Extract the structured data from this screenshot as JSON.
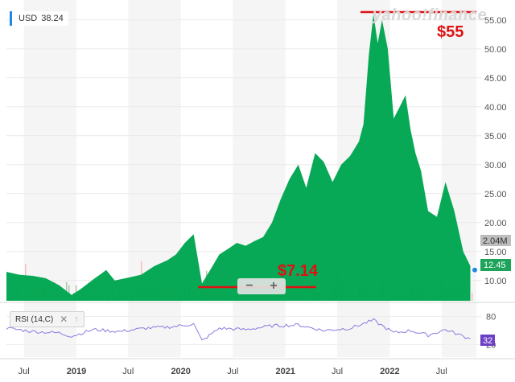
{
  "watermark": "yahoo!finance",
  "currency_badge": {
    "label": "USD",
    "value": "38.24"
  },
  "rsi_indicator": {
    "label": "RSI (14,C)",
    "close_icon": "close-icon",
    "up_icon": "arrow-up-icon",
    "value_label": "32"
  },
  "navigator": {
    "minus_label": "−",
    "plus_label": "+"
  },
  "annotations": {
    "high_label": "$55",
    "low_label": "$7.14"
  },
  "colors": {
    "area": "#00a651",
    "annotation": "#dd1111",
    "rsi_line": "#8a7be0",
    "volume_up": "#9bb89b",
    "volume_down": "#f2b3b3",
    "last_price_badge": "#1ea35a",
    "volume_badge": "#bdbdbd"
  },
  "chart_data": {
    "type": "area",
    "y_axis_ticks": [
      "55.00",
      "50.00",
      "45.00",
      "40.00",
      "35.00",
      "30.00",
      "25.00",
      "20.00",
      "15.00",
      "10.00"
    ],
    "x_axis_ticks": [
      "Jul",
      "2019",
      "Jul",
      "2020",
      "Jul",
      "2021",
      "Jul",
      "2022",
      "Jul"
    ],
    "ylim": [
      6.5,
      56.5
    ],
    "last_price": "12.45",
    "volume_label": "2.04M",
    "price_series": [
      [
        "2018-05-01",
        11.5
      ],
      [
        "2018-06-15",
        11.0
      ],
      [
        "2018-08-01",
        10.8
      ],
      [
        "2018-09-15",
        10.4
      ],
      [
        "2018-11-01",
        9.2
      ],
      [
        "2018-12-15",
        7.5
      ],
      [
        "2019-01-15",
        8.5
      ],
      [
        "2019-03-01",
        10.2
      ],
      [
        "2019-04-15",
        11.8
      ],
      [
        "2019-05-15",
        10.0
      ],
      [
        "2019-07-01",
        10.5
      ],
      [
        "2019-08-15",
        11.0
      ],
      [
        "2019-10-01",
        12.5
      ],
      [
        "2019-11-15",
        13.5
      ],
      [
        "2019-12-15",
        14.5
      ],
      [
        "2020-01-15",
        16.5
      ],
      [
        "2020-02-15",
        18.0
      ],
      [
        "2020-03-15",
        9.5
      ],
      [
        "2020-04-15",
        12.0
      ],
      [
        "2020-05-15",
        14.5
      ],
      [
        "2020-06-15",
        15.5
      ],
      [
        "2020-07-15",
        16.5
      ],
      [
        "2020-08-15",
        16.0
      ],
      [
        "2020-09-15",
        16.8
      ],
      [
        "2020-10-15",
        17.5
      ],
      [
        "2020-11-15",
        20.0
      ],
      [
        "2020-12-15",
        24.0
      ],
      [
        "2021-01-15",
        27.5
      ],
      [
        "2021-02-15",
        30.0
      ],
      [
        "2021-03-15",
        26.0
      ],
      [
        "2021-04-15",
        32.0
      ],
      [
        "2021-05-15",
        30.5
      ],
      [
        "2021-06-15",
        27.0
      ],
      [
        "2021-07-15",
        30.0
      ],
      [
        "2021-08-15",
        31.5
      ],
      [
        "2021-09-15",
        34.0
      ],
      [
        "2021-10-01",
        37.0
      ],
      [
        "2021-10-20",
        49.0
      ],
      [
        "2021-11-05",
        56.0
      ],
      [
        "2021-11-20",
        51.0
      ],
      [
        "2021-12-05",
        55.0
      ],
      [
        "2021-12-25",
        50.0
      ],
      [
        "2022-01-15",
        38.0
      ],
      [
        "2022-02-05",
        40.0
      ],
      [
        "2022-02-25",
        42.0
      ],
      [
        "2022-03-15",
        36.0
      ],
      [
        "2022-04-01",
        32.0
      ],
      [
        "2022-04-20",
        29.0
      ],
      [
        "2022-05-15",
        22.0
      ],
      [
        "2022-06-15",
        21.0
      ],
      [
        "2022-07-15",
        27.0
      ],
      [
        "2022-08-15",
        22.0
      ],
      [
        "2022-09-15",
        15.0
      ],
      [
        "2022-10-10",
        12.5
      ]
    ],
    "rsi_series": [
      [
        "2018-05-01",
        55
      ],
      [
        "2018-08-01",
        48
      ],
      [
        "2018-11-01",
        45
      ],
      [
        "2018-12-15",
        38
      ],
      [
        "2019-03-01",
        52
      ],
      [
        "2019-06-01",
        48
      ],
      [
        "2019-09-01",
        55
      ],
      [
        "2019-12-01",
        58
      ],
      [
        "2020-02-15",
        64
      ],
      [
        "2020-03-15",
        28
      ],
      [
        "2020-05-15",
        55
      ],
      [
        "2020-08-15",
        52
      ],
      [
        "2020-11-15",
        60
      ],
      [
        "2021-02-15",
        62
      ],
      [
        "2021-05-15",
        50
      ],
      [
        "2021-08-15",
        55
      ],
      [
        "2021-11-05",
        72
      ],
      [
        "2022-01-15",
        45
      ],
      [
        "2022-03-15",
        50
      ],
      [
        "2022-05-15",
        40
      ],
      [
        "2022-07-15",
        52
      ],
      [
        "2022-10-10",
        32
      ]
    ],
    "rsi_levels": [
      80,
      20
    ]
  }
}
